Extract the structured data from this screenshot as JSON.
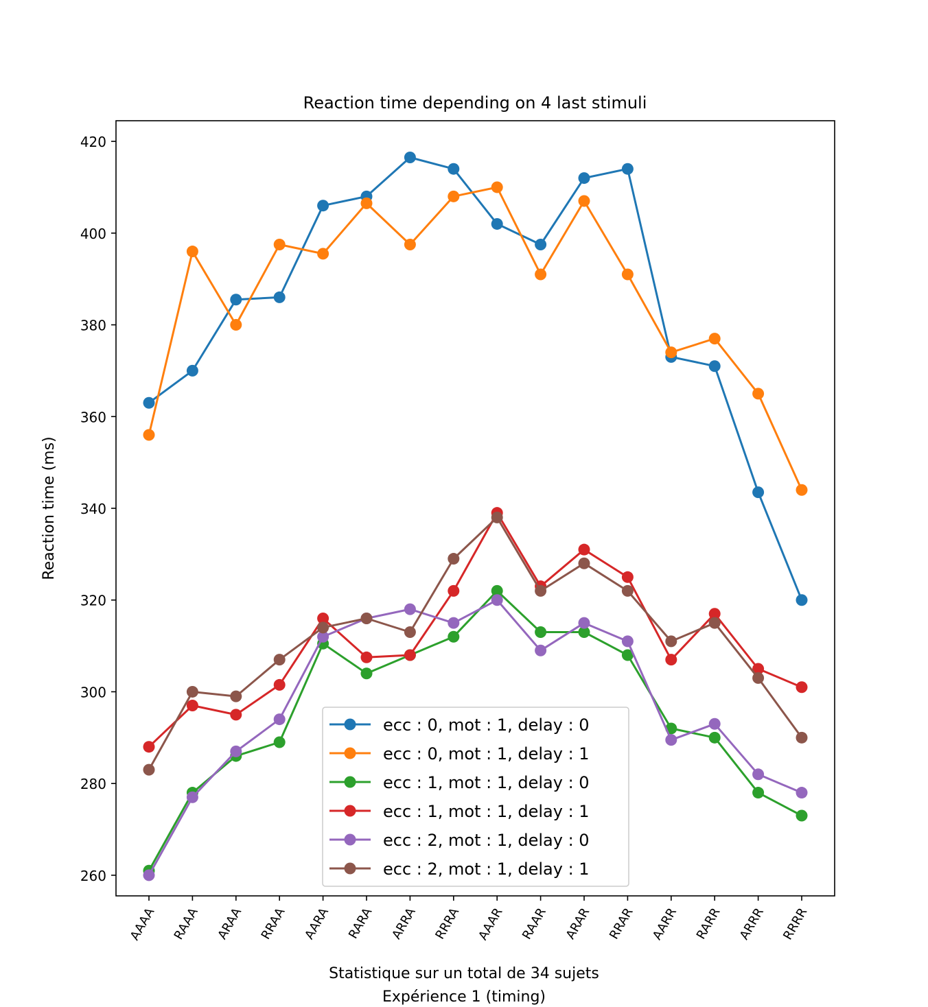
{
  "chart_data": {
    "type": "line",
    "title": "Reaction time depending on 4 last stimuli",
    "xlabel_lines": [
      "Statistique sur un total de 34 sujets",
      "Expérience 1 (timing)"
    ],
    "ylabel": "Reaction time (ms)",
    "categories": [
      "AAAA",
      "RAAA",
      "ARAA",
      "RRAA",
      "AARA",
      "RARA",
      "ARRA",
      "RRRA",
      "AAAR",
      "RAAR",
      "ARAR",
      "RRAR",
      "AARR",
      "RARR",
      "ARRR",
      "RRRR"
    ],
    "ylim": [
      255.5,
      424.5
    ],
    "yticks": [
      260,
      280,
      300,
      320,
      340,
      360,
      380,
      400,
      420
    ],
    "grid": false,
    "legend_position": "lower-center",
    "series": [
      {
        "name": "ecc : 0, mot : 1, delay : 0",
        "color": "#1f77b4",
        "values": [
          363,
          370,
          385.5,
          386,
          406,
          408,
          416.5,
          414,
          402,
          397.5,
          412,
          414,
          373,
          371,
          343.5,
          320
        ]
      },
      {
        "name": "ecc : 0, mot : 1, delay : 1",
        "color": "#ff7f0e",
        "values": [
          356,
          396,
          380,
          397.5,
          395.5,
          406.5,
          397.5,
          408,
          410,
          391,
          407,
          391,
          374,
          377,
          365,
          344
        ]
      },
      {
        "name": "ecc : 1, mot : 1, delay : 0",
        "color": "#2ca02c",
        "values": [
          261,
          278,
          286,
          289,
          310.5,
          304,
          308,
          312,
          322,
          313,
          313,
          308,
          292,
          290,
          278,
          273
        ]
      },
      {
        "name": "ecc : 1, mot : 1, delay : 1",
        "color": "#d62728",
        "values": [
          288,
          297,
          295,
          301.5,
          316,
          307.5,
          308,
          322,
          339,
          323,
          331,
          325,
          307,
          317,
          305,
          301
        ]
      },
      {
        "name": "ecc : 2, mot : 1, delay : 0",
        "color": "#9467bd",
        "values": [
          260,
          277,
          287,
          294,
          312,
          316,
          318,
          315,
          320,
          309,
          315,
          311,
          289.5,
          293,
          282,
          278
        ]
      },
      {
        "name": "ecc : 2, mot : 1, delay : 1",
        "color": "#8c564b",
        "values": [
          283,
          300,
          299,
          307,
          314,
          316,
          313,
          329,
          338,
          322,
          328,
          322,
          311,
          315,
          303,
          290
        ]
      }
    ]
  }
}
